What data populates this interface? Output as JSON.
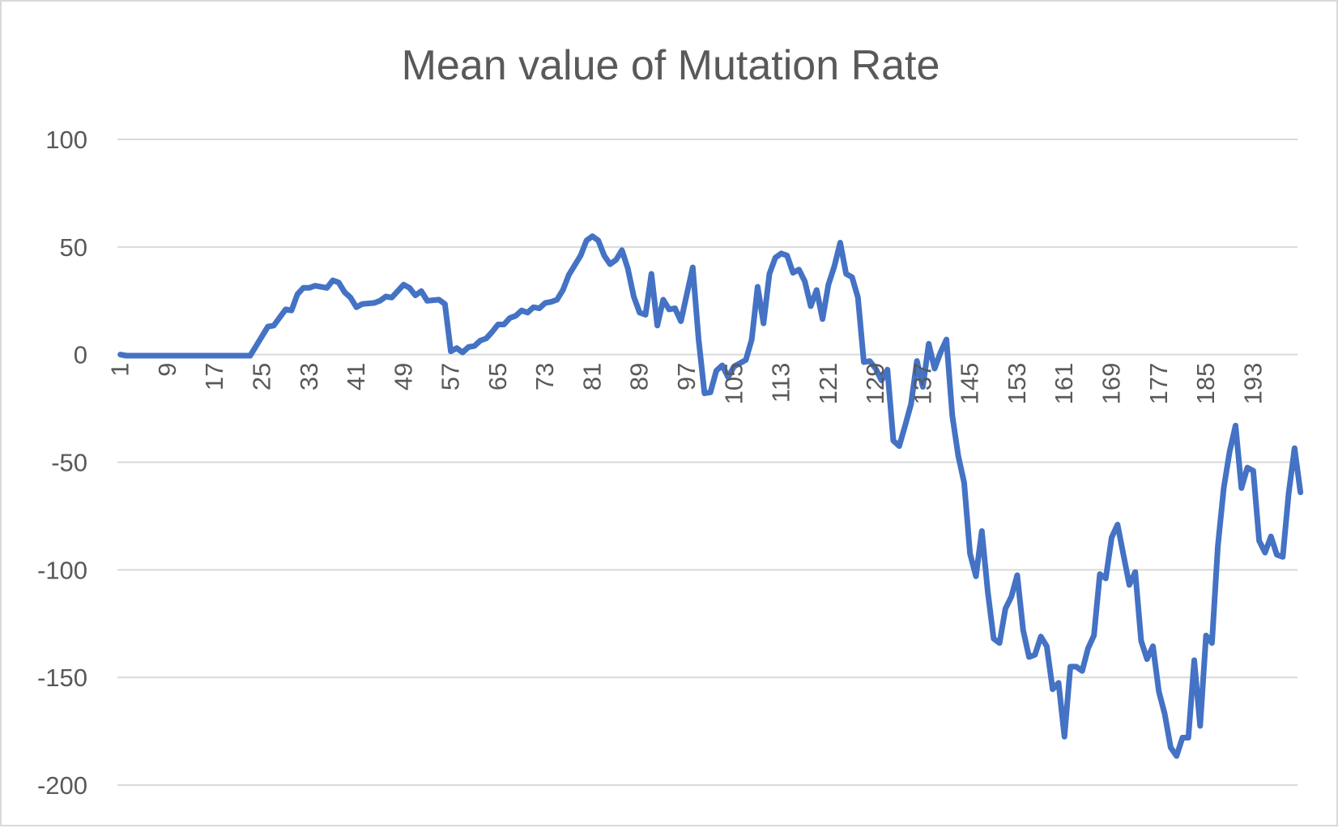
{
  "chart_data": {
    "type": "line",
    "title": "Mean value of Mutation Rate",
    "xlabel": "",
    "ylabel": "",
    "ylim": [
      -200,
      100
    ],
    "y_ticks": [
      100,
      50,
      0,
      -50,
      -100,
      -150,
      -200
    ],
    "y_tick_labels": [
      "100",
      "50",
      "0",
      "-50",
      "-100",
      "-150",
      "-200"
    ],
    "x_tick_labels": [
      "1",
      "9",
      "17",
      "25",
      "33",
      "41",
      "49",
      "57",
      "65",
      "73",
      "81",
      "89",
      "97",
      "105",
      "113",
      "121",
      "129",
      "137",
      "145",
      "153",
      "161",
      "169",
      "177",
      "185",
      "193"
    ],
    "x_range": [
      1,
      200
    ],
    "grid": true,
    "legend": "none",
    "series": [
      {
        "color": "#4472c4",
        "keypoints": [
          [
            1,
            0
          ],
          [
            2,
            -0.5
          ],
          [
            23,
            -0.5
          ],
          [
            24,
            4
          ],
          [
            26,
            13
          ],
          [
            27,
            13.5
          ],
          [
            29,
            21
          ],
          [
            30,
            20.5
          ],
          [
            31,
            28
          ],
          [
            32,
            31
          ],
          [
            33,
            31
          ],
          [
            34,
            32
          ],
          [
            36,
            31
          ],
          [
            37,
            34.5
          ],
          [
            38,
            33.5
          ],
          [
            39,
            29
          ],
          [
            40,
            26.5
          ],
          [
            41,
            22
          ],
          [
            42,
            23.5
          ],
          [
            44,
            24
          ],
          [
            45,
            25
          ],
          [
            46,
            27
          ],
          [
            47,
            26.5
          ],
          [
            48,
            29.5
          ],
          [
            49,
            32.5
          ],
          [
            50,
            31
          ],
          [
            51,
            27.5
          ],
          [
            52,
            29.5
          ],
          [
            53,
            25
          ],
          [
            55,
            25.5
          ],
          [
            56,
            23.5
          ],
          [
            57,
            1.5
          ],
          [
            58,
            3
          ],
          [
            59,
            1
          ],
          [
            60,
            3.5
          ],
          [
            61,
            4
          ],
          [
            62,
            6.5
          ],
          [
            63,
            7.5
          ],
          [
            64,
            10.5
          ],
          [
            65,
            14
          ],
          [
            66,
            14
          ],
          [
            67,
            17
          ],
          [
            68,
            18
          ],
          [
            69,
            20.5
          ],
          [
            70,
            19.5
          ],
          [
            71,
            22
          ],
          [
            72,
            21.5
          ],
          [
            73,
            24
          ],
          [
            74,
            24.5
          ],
          [
            75,
            25.5
          ],
          [
            76,
            30
          ],
          [
            77,
            37
          ],
          [
            79,
            46
          ],
          [
            80,
            53
          ],
          [
            81,
            55
          ],
          [
            82,
            53
          ],
          [
            83,
            46
          ],
          [
            84,
            42
          ],
          [
            85,
            44
          ],
          [
            86,
            48.5
          ],
          [
            87,
            40
          ],
          [
            88,
            27
          ],
          [
            89,
            19.5
          ],
          [
            90,
            18.5
          ],
          [
            91,
            37.5
          ],
          [
            92,
            13.5
          ],
          [
            93,
            25.5
          ],
          [
            94,
            21
          ],
          [
            95,
            21.5
          ],
          [
            96,
            15.5
          ],
          [
            97,
            28
          ],
          [
            98,
            40.5
          ],
          [
            99,
            7
          ],
          [
            100,
            -18
          ],
          [
            101,
            -17.5
          ],
          [
            102,
            -7.5
          ],
          [
            103,
            -5
          ],
          [
            104,
            -10.5
          ],
          [
            105,
            -5.5
          ],
          [
            106,
            -4
          ],
          [
            107,
            -2.5
          ],
          [
            108,
            7
          ],
          [
            109,
            31.5
          ],
          [
            110,
            14.5
          ],
          [
            111,
            37.5
          ],
          [
            112,
            45
          ],
          [
            113,
            47
          ],
          [
            114,
            46
          ],
          [
            115,
            38
          ],
          [
            116,
            39.5
          ],
          [
            117,
            34
          ],
          [
            118,
            22.5
          ],
          [
            119,
            30
          ],
          [
            120,
            16.5
          ],
          [
            121,
            32.5
          ],
          [
            122,
            41
          ],
          [
            123,
            52
          ],
          [
            124,
            37.5
          ],
          [
            125,
            36
          ],
          [
            126,
            26.5
          ],
          [
            127,
            -3.5
          ],
          [
            128,
            -3
          ],
          [
            129,
            -6.5
          ],
          [
            130,
            -12
          ],
          [
            131,
            -7
          ],
          [
            132,
            -40
          ],
          [
            133,
            -42.5
          ],
          [
            134,
            -33
          ],
          [
            135,
            -23
          ],
          [
            136,
            -3
          ],
          [
            137,
            -15
          ],
          [
            138,
            5
          ],
          [
            139,
            -6.5
          ],
          [
            140,
            1
          ],
          [
            141,
            7
          ],
          [
            142,
            -28.5
          ],
          [
            143,
            -47
          ],
          [
            144,
            -59.5
          ],
          [
            145,
            -92.5
          ],
          [
            146,
            -103
          ],
          [
            147,
            -82
          ],
          [
            148,
            -110
          ],
          [
            149,
            -132
          ],
          [
            150,
            -134
          ],
          [
            151,
            -118
          ],
          [
            152,
            -112.5
          ],
          [
            153,
            -102.5
          ],
          [
            154,
            -128
          ],
          [
            155,
            -140.5
          ],
          [
            156,
            -139.5
          ],
          [
            157,
            -131
          ],
          [
            158,
            -135.5
          ],
          [
            159,
            -155.5
          ],
          [
            160,
            -152.5
          ],
          [
            161,
            -177.5
          ],
          [
            162,
            -145
          ],
          [
            163,
            -145
          ],
          [
            164,
            -147
          ],
          [
            165,
            -136.5
          ],
          [
            166,
            -130.5
          ],
          [
            167,
            -102
          ],
          [
            168,
            -104
          ],
          [
            169,
            -85
          ],
          [
            170,
            -79
          ],
          [
            171,
            -93
          ],
          [
            172,
            -107
          ],
          [
            173,
            -101
          ],
          [
            174,
            -133
          ],
          [
            175,
            -141.5
          ],
          [
            176,
            -135.5
          ],
          [
            177,
            -156.5
          ],
          [
            178,
            -167
          ],
          [
            179,
            -182.5
          ],
          [
            180,
            -186.5
          ],
          [
            181,
            -178
          ],
          [
            182,
            -178
          ],
          [
            183,
            -142
          ],
          [
            184,
            -172.5
          ],
          [
            185,
            -130.5
          ],
          [
            186,
            -134
          ],
          [
            187,
            -89
          ],
          [
            188,
            -62
          ],
          [
            189,
            -45
          ],
          [
            190,
            -33
          ],
          [
            191,
            -62
          ],
          [
            192,
            -52.5
          ],
          [
            193,
            -54
          ],
          [
            194,
            -86.5
          ],
          [
            195,
            -92
          ],
          [
            196,
            -84.5
          ],
          [
            197,
            -93
          ],
          [
            198,
            -94
          ],
          [
            199,
            -64.5
          ],
          [
            200,
            -43.5
          ],
          [
            201,
            -64
          ]
        ]
      }
    ]
  }
}
